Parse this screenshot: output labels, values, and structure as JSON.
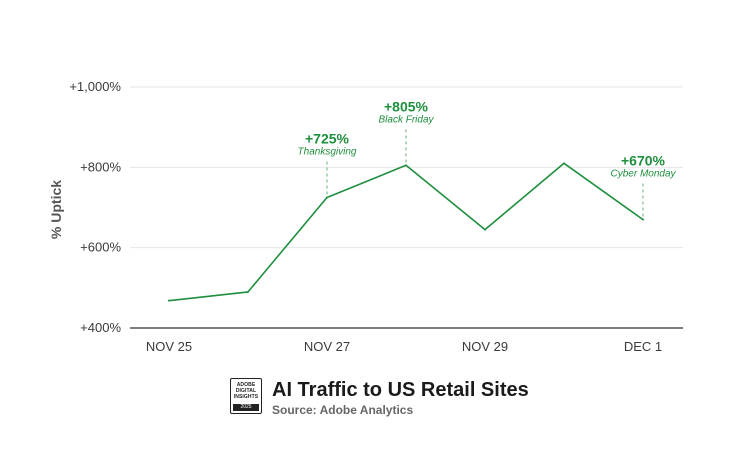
{
  "chart_data": {
    "type": "line",
    "title": "AI Traffic to US Retail Sites",
    "subtitle": "Source: Adobe Analytics",
    "xlabel": "",
    "ylabel": "% Uptick",
    "ylim": [
      400,
      1000
    ],
    "y_ticks": [
      400,
      600,
      800,
      1000
    ],
    "y_tick_labels": [
      "+400%",
      "+600%",
      "+800%",
      "+1,000%"
    ],
    "x_tick_labels": [
      "NOV 25",
      "NOV 27",
      "NOV 29",
      "DEC 1"
    ],
    "x_tick_positions": [
      "2024-11-25",
      "2024-11-27",
      "2024-11-29",
      "2024-12-01"
    ],
    "x": [
      "2024-11-25",
      "2024-11-26",
      "2024-11-27",
      "2024-11-28",
      "2024-11-29",
      "2024-11-30",
      "2024-12-01"
    ],
    "grid": true,
    "series": [
      {
        "values": [
          468,
          490,
          725,
          805,
          645,
          810,
          670
        ],
        "color": "#1f8f3e"
      }
    ],
    "annotations": [
      {
        "x": "2024-11-27",
        "value_text": "+725%",
        "label": "Thanksgiving"
      },
      {
        "x": "2024-11-28",
        "value_text": "+805%",
        "label": "Black Friday"
      },
      {
        "x": "2024-12-01",
        "value_text": "+670%",
        "label": "Cyber Monday"
      }
    ]
  },
  "badge": {
    "lines": [
      "ADOBE",
      "DIGITAL",
      "INSIGHTS"
    ],
    "year": "2025"
  },
  "colors": {
    "line": "#1f8f3e",
    "annotation": "#1f8f3e",
    "grid": "#e6e6e6",
    "baseline": "#555555"
  }
}
